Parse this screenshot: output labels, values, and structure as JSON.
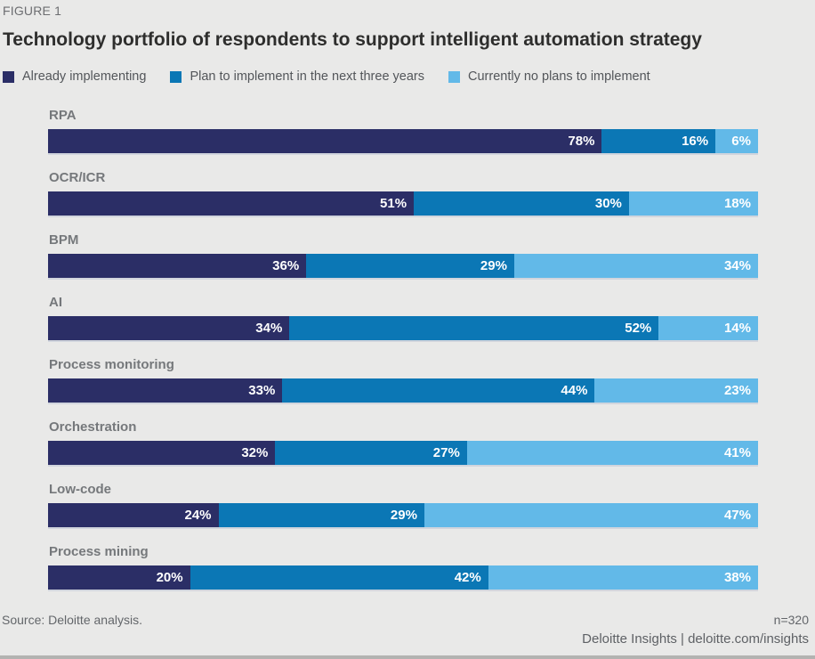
{
  "figure_label": "FIGURE 1",
  "title": "Technology portfolio of respondents to support intelligent automation strategy",
  "legend": [
    {
      "label": "Already implementing",
      "color": "#2b2e66"
    },
    {
      "label": "Plan to implement in the next three years",
      "color": "#0b77b5"
    },
    {
      "label": "Currently no plans to implement",
      "color": "#62b9e8"
    }
  ],
  "footer": {
    "source": "Source: Deloitte analysis.",
    "sample_size": "n=320",
    "branding": "Deloitte Insights | deloitte.com/insights"
  },
  "chart_data": {
    "type": "bar",
    "orientation": "horizontal",
    "stacked": true,
    "title": "Technology portfolio of respondents to support intelligent automation strategy",
    "categories": [
      "RPA",
      "OCR/ICR",
      "BPM",
      "AI",
      "Process monitoring",
      "Orchestration",
      "Low-code",
      "Process mining"
    ],
    "series": [
      {
        "name": "Already implementing",
        "color": "#2b2e66",
        "values": [
          78,
          51,
          36,
          34,
          33,
          32,
          24,
          20
        ]
      },
      {
        "name": "Plan to implement in the next three years",
        "color": "#0b77b5",
        "values": [
          16,
          30,
          29,
          52,
          44,
          27,
          29,
          42
        ]
      },
      {
        "name": "Currently no plans to implement",
        "color": "#62b9e8",
        "values": [
          6,
          18,
          34,
          14,
          23,
          41,
          47,
          38
        ]
      }
    ],
    "value_suffix": "%",
    "xlim": [
      0,
      100
    ],
    "legend_position": "top",
    "grid": false,
    "value_labels": "inside-right"
  }
}
